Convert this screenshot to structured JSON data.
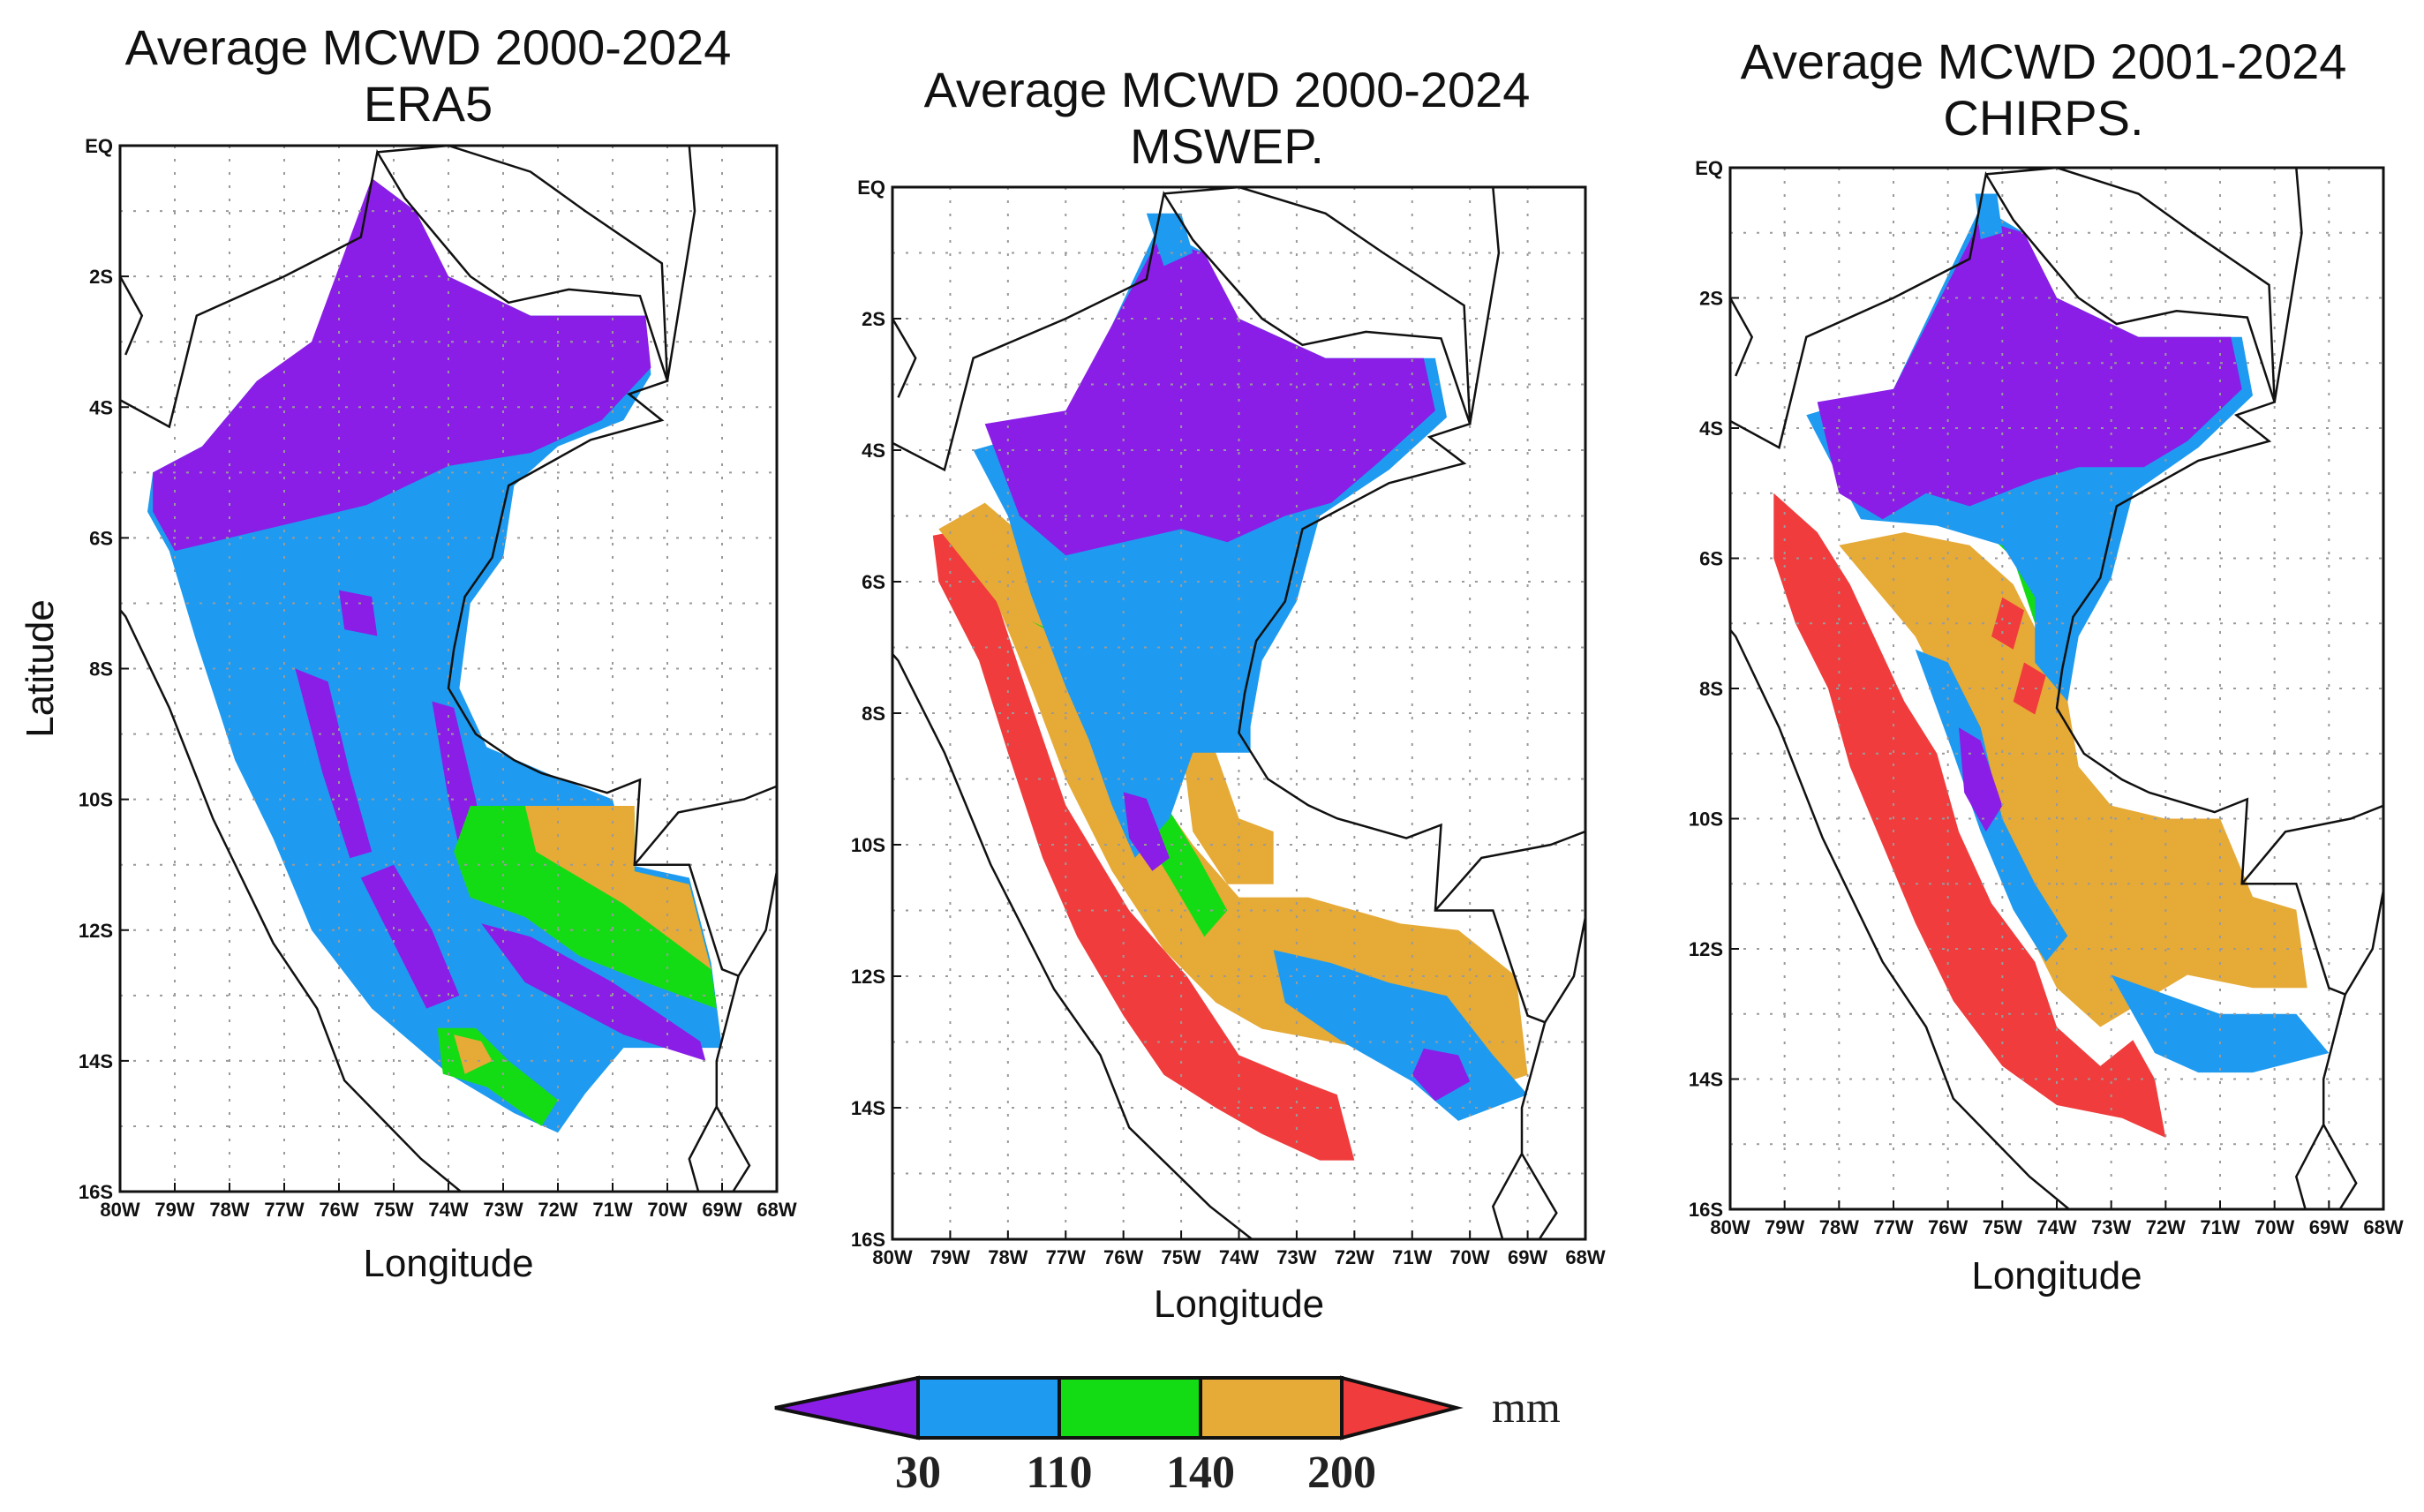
{
  "maps": [
    {
      "title_line1": "Average MCWD  2000-2024",
      "title_line2": "ERA5",
      "x_label": "Longitude",
      "y_label": "Latitude",
      "lon_ticks": [
        "80W",
        "79W",
        "78W",
        "77W",
        "76W",
        "75W",
        "74W",
        "73W",
        "72W",
        "71W",
        "70W",
        "69W",
        "68W"
      ],
      "lat_ticks": [
        "EQ",
        "2S",
        "4S",
        "6S",
        "8S",
        "10S",
        "12S",
        "14S",
        "16S"
      ],
      "dominant_class": "30-110 mm (blue) with <30 mm (purple) north",
      "variant": "era5"
    },
    {
      "title_line1": "Average MCWD 2000-2024",
      "title_line2": "MSWEP.",
      "x_label": "Longitude",
      "y_label": "",
      "lon_ticks": [
        "80W",
        "79W",
        "78W",
        "77W",
        "76W",
        "75W",
        "74W",
        "73W",
        "72W",
        "71W",
        "70W",
        "69W",
        "68W"
      ],
      "lat_ticks": [
        "EQ",
        "2S",
        "4S",
        "6S",
        "8S",
        "10S",
        "12S",
        "14S",
        "16S"
      ],
      "variant": "mswep"
    },
    {
      "title_line1": "Average MCWD 2001-2024",
      "title_line2": "CHIRPS.",
      "x_label": "Longitude",
      "y_label": "",
      "lon_ticks": [
        "80W",
        "79W",
        "78W",
        "77W",
        "76W",
        "75W",
        "74W",
        "73W",
        "72W",
        "71W",
        "70W",
        "69W",
        "68W"
      ],
      "lat_ticks": [
        "EQ",
        "2S",
        "4S",
        "6S",
        "8S",
        "10S",
        "12S",
        "14S",
        "16S"
      ],
      "variant": "chirps"
    }
  ],
  "colorbar": {
    "unit": "mm",
    "boundaries": [
      "30",
      "110",
      "140",
      "200"
    ],
    "classes": [
      {
        "label": "< 30",
        "color": "#8a1ee6"
      },
      {
        "label": "30-110",
        "color": "#1e9bf0"
      },
      {
        "label": "110-140",
        "color": "#14dc14"
      },
      {
        "label": "140-200",
        "color": "#e6aa37"
      },
      {
        "label": "> 200",
        "color": "#f03c3c"
      }
    ]
  },
  "colors": {
    "purple": "#8a1ee6",
    "blue": "#1e9bf0",
    "green": "#14dc14",
    "orange": "#e6aa37",
    "red": "#f03c3c"
  }
}
